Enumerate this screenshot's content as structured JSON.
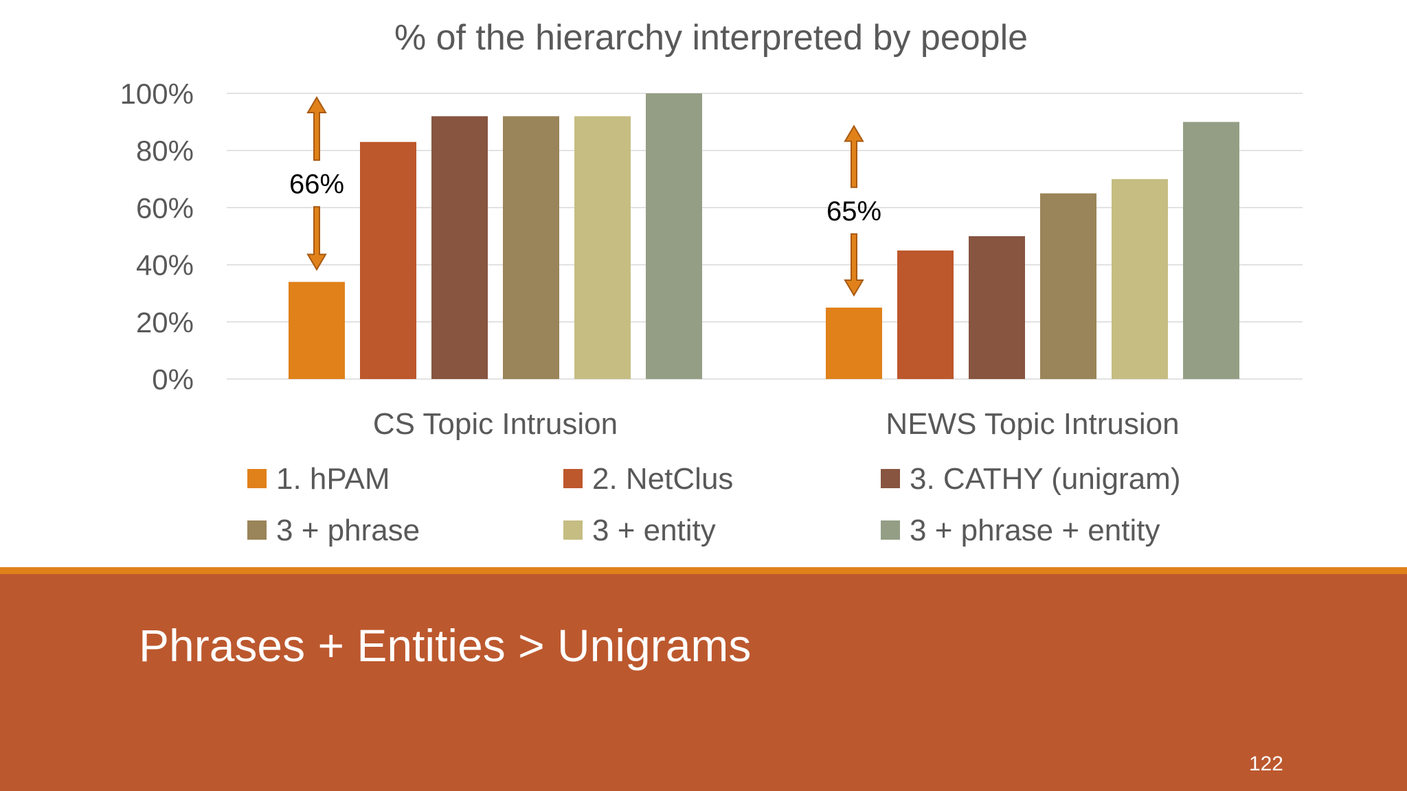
{
  "slide": {
    "footer_title": "Phrases + Entities > Unigrams",
    "slide_number": "122",
    "colors": {
      "footer_bg": "#BC582E",
      "accent_line": "#E0811A",
      "annotation_arrow": "#E0811A",
      "annotation_arrow_border": "#A85A12"
    }
  },
  "chart_data": {
    "type": "bar",
    "title": "% of the hierarchy interpreted by people",
    "xlabel": "",
    "ylabel": "",
    "ylim": [
      0,
      100
    ],
    "yticks": [
      "0%",
      "20%",
      "40%",
      "60%",
      "80%",
      "100%"
    ],
    "ytick_values": [
      0,
      20,
      40,
      60,
      80,
      100
    ],
    "grid": true,
    "legend_position": "bottom",
    "categories": [
      "CS Topic Intrusion",
      "NEWS Topic Intrusion"
    ],
    "series": [
      {
        "name": "1. hPAM",
        "color": "#E0811A",
        "values": [
          34,
          25
        ]
      },
      {
        "name": "2. NetClus",
        "color": "#BD572C",
        "values": [
          83,
          45
        ]
      },
      {
        "name": "3. CATHY (unigram)",
        "color": "#875540",
        "values": [
          92,
          50
        ]
      },
      {
        "name": "3 + phrase",
        "color": "#9A8459",
        "values": [
          92,
          65
        ]
      },
      {
        "name": "3 + entity",
        "color": "#C5BD82",
        "values": [
          92,
          70
        ]
      },
      {
        "name": "3 + phrase + entity",
        "color": "#949E85",
        "values": [
          100,
          90
        ]
      }
    ],
    "annotations": [
      {
        "category": "CS Topic Intrusion",
        "text": "66%",
        "from": 34,
        "to": 100
      },
      {
        "category": "NEWS Topic Intrusion",
        "text": "65%",
        "from": 25,
        "to": 90
      }
    ]
  }
}
